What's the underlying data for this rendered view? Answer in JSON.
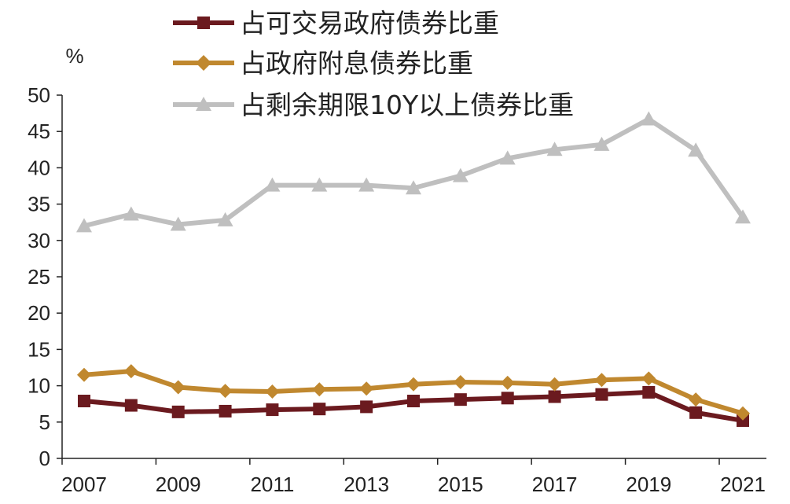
{
  "chart_data": {
    "type": "line",
    "ylabel": "%",
    "ylim": [
      0,
      50
    ],
    "yticks": [
      "0",
      "5",
      "10",
      "15",
      "20",
      "25",
      "30",
      "35",
      "40",
      "45",
      "50"
    ],
    "xtick_labels": [
      "2007",
      "2009",
      "2011",
      "2013",
      "2015",
      "2017",
      "2019",
      "2021"
    ],
    "xlim": [
      2007,
      2021
    ],
    "legend_position": "top",
    "grid": false,
    "series": [
      {
        "name": "占可交易政府债券比重",
        "color": "#6b1a1f",
        "marker": "square",
        "x": [
          2007,
          2008,
          2009,
          2010,
          2011,
          2012,
          2013,
          2014,
          2015,
          2016,
          2017,
          2018,
          2019,
          2020,
          2021
        ],
        "values": [
          7.9,
          7.3,
          6.4,
          6.5,
          6.7,
          6.8,
          7.1,
          7.9,
          8.1,
          8.3,
          8.5,
          8.8,
          9.1,
          6.3,
          5.2
        ]
      },
      {
        "name": "占政府附息债券比重",
        "color": "#c0882f",
        "marker": "diamond",
        "x": [
          2007,
          2008,
          2009,
          2010,
          2011,
          2012,
          2013,
          2014,
          2015,
          2016,
          2017,
          2018,
          2019,
          2020,
          2021
        ],
        "values": [
          11.5,
          12.0,
          9.8,
          9.3,
          9.2,
          9.5,
          9.6,
          10.2,
          10.5,
          10.4,
          10.2,
          10.8,
          11.0,
          8.1,
          6.2
        ]
      },
      {
        "name": "占剩余期限10Y以上债券比重",
        "color": "#bfbfbf",
        "marker": "triangle",
        "x": [
          2007,
          2008,
          2009,
          2010,
          2011,
          2012,
          2013,
          2014,
          2015,
          2016,
          2017,
          2018,
          2019,
          2020,
          2021
        ],
        "values": [
          32.0,
          33.6,
          32.2,
          32.8,
          37.6,
          37.6,
          37.6,
          37.2,
          38.9,
          41.3,
          42.5,
          43.2,
          46.7,
          42.4,
          33.2
        ]
      }
    ]
  }
}
